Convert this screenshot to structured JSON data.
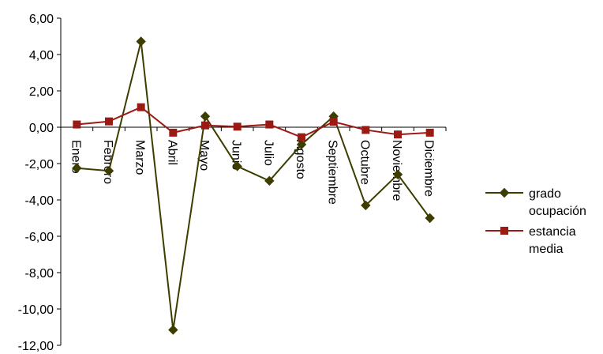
{
  "chart_data": {
    "type": "line",
    "categories": [
      "Enero",
      "Febrero",
      "Marzo",
      "Abril",
      "Mayo",
      "Junio",
      "Julio",
      "Agosto",
      "Septiembre",
      "Octubre",
      "Noviembre",
      "Diciembre"
    ],
    "series": [
      {
        "name": "grado ocupación",
        "legend_lines": [
          "grado",
          "ocupación"
        ],
        "color": "#3d3d00",
        "marker": "diamond",
        "values": [
          -2.25,
          -2.4,
          4.72,
          -11.15,
          0.6,
          -2.15,
          -2.95,
          -0.95,
          0.6,
          -4.3,
          -2.6,
          -5.0
        ]
      },
      {
        "name": "estancia media",
        "legend_lines": [
          "estancia",
          "media"
        ],
        "color": "#9b1a14",
        "marker": "square",
        "values": [
          0.15,
          0.32,
          1.1,
          -0.3,
          0.1,
          0.03,
          0.15,
          -0.55,
          0.3,
          -0.15,
          -0.4,
          -0.3
        ]
      }
    ],
    "ylim": [
      -12,
      6
    ],
    "yticks": [
      "6,00",
      "4,00",
      "2,00",
      "0,00",
      "-2,00",
      "-4,00",
      "-6,00",
      "-8,00",
      "-10,00",
      "-12,00"
    ],
    "ytick_values": [
      6,
      4,
      2,
      0,
      -2,
      -4,
      -6,
      -8,
      -10,
      -12
    ],
    "title": "",
    "xlabel": "",
    "ylabel": "",
    "legend_position": "right",
    "grid": false
  }
}
